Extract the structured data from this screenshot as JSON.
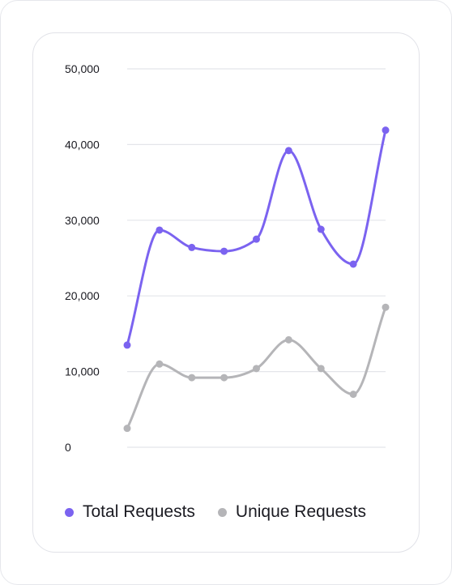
{
  "chart_data": {
    "type": "line",
    "title": "",
    "xlabel": "",
    "ylabel": "",
    "ylim": [
      0,
      50000
    ],
    "yticks": [
      0,
      10000,
      20000,
      30000,
      40000,
      50000
    ],
    "ytick_labels": [
      "0",
      "10,000",
      "20,000",
      "30,000",
      "40,000",
      "50,000"
    ],
    "grid": true,
    "legend_position": "bottom",
    "smooth": true,
    "series": [
      {
        "name": "Total Requests",
        "color": "#7b63f0",
        "values": [
          13500,
          28700,
          26400,
          25900,
          27500,
          39200,
          28800,
          24200,
          41900
        ]
      },
      {
        "name": "Unique Requests",
        "color": "#b5b5b8",
        "values": [
          2500,
          11000,
          9200,
          9200,
          10400,
          14200,
          10400,
          7000,
          18500
        ]
      }
    ]
  }
}
